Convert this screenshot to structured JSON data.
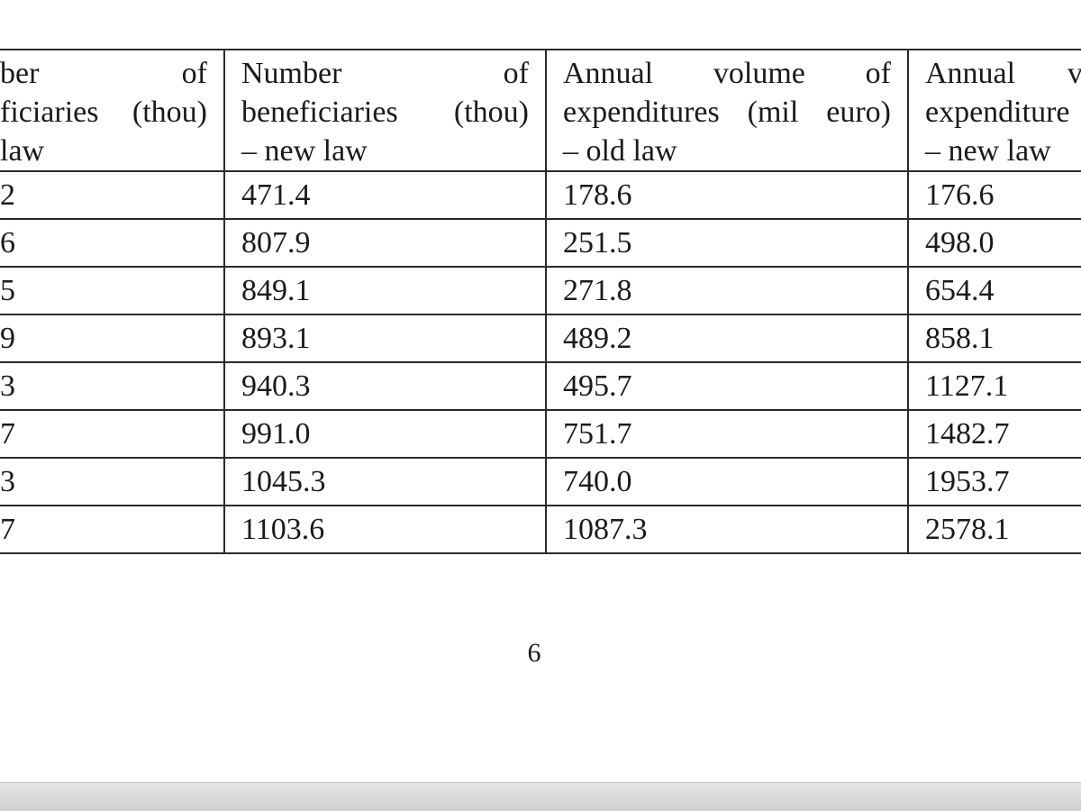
{
  "table": {
    "header": [
      [
        "ber of",
        "ficiaries (thou)",
        "law"
      ],
      [
        "Number of",
        "beneficiaries (thou)",
        "– new law"
      ],
      [
        "Annual volume of",
        "expenditures (mil euro)",
        "– old law"
      ],
      [
        "Annual v",
        "expenditure",
        "– new law"
      ]
    ],
    "rows": [
      [
        "2",
        "471.4",
        "178.6",
        "176.6"
      ],
      [
        "6",
        "807.9",
        "251.5",
        "498.0"
      ],
      [
        "5",
        "849.1",
        "271.8",
        "654.4"
      ],
      [
        "9",
        "893.1",
        "489.2",
        "858.1"
      ],
      [
        "3",
        "940.3",
        "495.7",
        "1127.1"
      ],
      [
        "7",
        "991.0",
        "751.7",
        "1482.7"
      ],
      [
        "3",
        "1045.3",
        "740.0",
        "1953.7"
      ],
      [
        "7",
        "1103.6",
        "1087.3",
        "2578.1"
      ]
    ]
  },
  "page_number": "6"
}
